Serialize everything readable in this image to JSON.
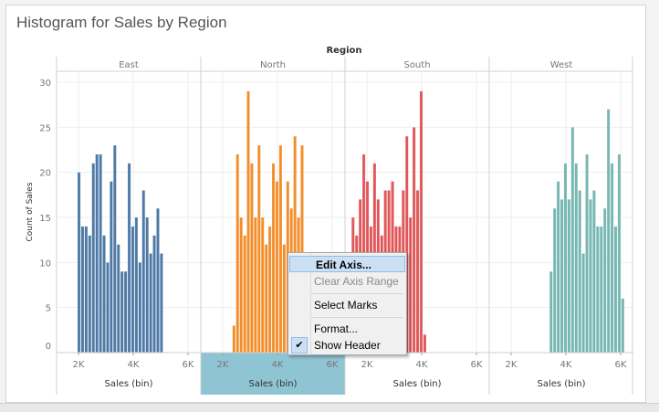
{
  "title": "Histogram for Sales by Region",
  "chart_data": {
    "type": "bar",
    "title": "Histogram for Sales by Region",
    "column_header": "Region",
    "xlabel": "Sales (bin)",
    "ylabel": "Count of Sales",
    "ylim": [
      0,
      30
    ],
    "yticks": [
      "0",
      "5",
      "10",
      "15",
      "20",
      "25",
      "30"
    ],
    "xlim": [
      1200,
      6400
    ],
    "xticks": [
      {
        "v": 2000,
        "label": "2K"
      },
      {
        "v": 4000,
        "label": "4K"
      },
      {
        "v": 6000,
        "label": "6K"
      }
    ],
    "bin_size": 131,
    "grid": true,
    "panels": [
      {
        "name": "East",
        "color": "#4e79a7",
        "bin_start": 1965,
        "values": [
          20,
          14,
          14,
          13,
          21,
          22,
          22,
          13,
          10,
          19,
          23,
          12,
          9,
          9,
          21,
          14,
          15,
          10,
          18,
          15,
          11,
          13,
          16,
          11
        ]
      },
      {
        "name": "North",
        "color": "#f28e2b",
        "bin_start": 2358,
        "values": [
          3,
          22,
          15,
          13,
          29,
          21,
          15,
          23,
          15,
          12,
          14,
          21,
          19,
          23,
          12,
          19,
          16,
          24,
          15,
          23,
          8
        ]
      },
      {
        "name": "South",
        "color": "#e15759",
        "bin_start": 1441,
        "values": [
          15,
          13,
          17,
          22,
          19,
          14,
          21,
          17,
          13,
          18,
          18,
          19,
          14,
          14,
          18,
          24,
          15,
          25,
          18,
          29,
          2
        ]
      },
      {
        "name": "West",
        "color": "#76b7b2",
        "bin_start": 3406,
        "values": [
          9,
          16,
          19,
          17,
          21,
          17,
          25,
          21,
          18,
          11,
          22,
          17,
          18,
          14,
          14,
          16,
          27,
          21,
          14,
          22,
          6
        ]
      }
    ]
  },
  "context_menu": {
    "items": [
      {
        "label": "Edit Axis...",
        "state": "highlighted"
      },
      {
        "label": "Clear Axis Range",
        "state": "disabled"
      },
      {
        "label": "Select Marks",
        "state": "normal"
      },
      {
        "label": "Format...",
        "state": "normal"
      },
      {
        "label": "Show Header",
        "state": "checked"
      }
    ],
    "check_icon": "checkmark"
  },
  "selected_axis_color": "#8fc4d3"
}
